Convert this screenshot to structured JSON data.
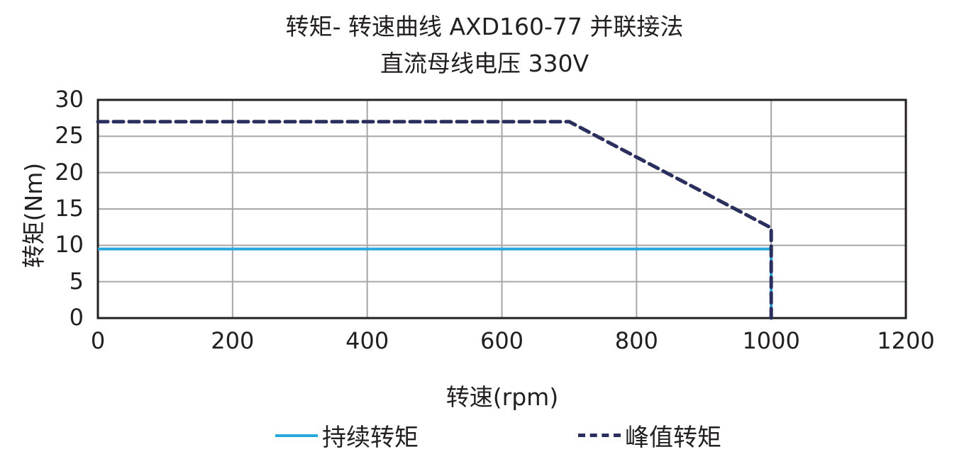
{
  "chart_data": {
    "type": "line",
    "title": "转矩- 转速曲线 AXD160-77 并联接法",
    "subtitle": "直流母线电压 330V",
    "xlabel": "转速(rpm)",
    "ylabel": "转矩(Nm)",
    "xlim": [
      0,
      1200
    ],
    "ylim": [
      0,
      30
    ],
    "xticks": [
      "0",
      "200",
      "400",
      "600",
      "800",
      "1000",
      "1200"
    ],
    "yticks": [
      "30",
      "25",
      "20",
      "15",
      "10",
      "5",
      "0"
    ],
    "grid": true,
    "legend_position": "bottom",
    "series": [
      {
        "name": "持续转矩",
        "style": "solid",
        "color": "#29a8dc",
        "x": [
          0,
          1000,
          1000
        ],
        "y": [
          9.5,
          9.5,
          0
        ]
      },
      {
        "name": "峰值转矩",
        "style": "dashed",
        "color": "#2b2f5e",
        "x": [
          0,
          700,
          1000,
          1000
        ],
        "y": [
          27,
          27,
          12.4,
          0
        ]
      }
    ]
  },
  "legend": {
    "continuous": "持续转矩",
    "peak": "峰值转矩"
  }
}
